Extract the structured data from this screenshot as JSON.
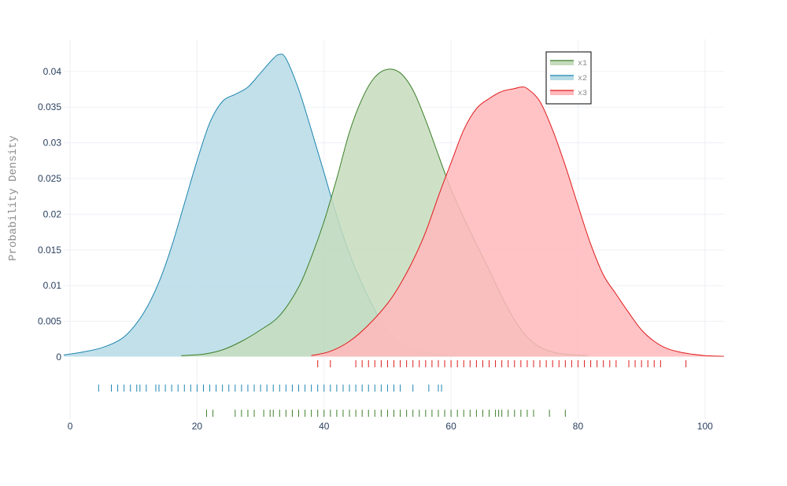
{
  "chart_data": {
    "type": "area",
    "title": "",
    "xlabel": "",
    "ylabel": "Probability Density",
    "xlim": [
      -1,
      103
    ],
    "ylim": [
      0,
      0.0445
    ],
    "x_ticks": [
      0,
      20,
      40,
      60,
      80,
      100
    ],
    "x_tick_labels": [
      "0",
      "20",
      "40",
      "60",
      "80",
      "100"
    ],
    "y_ticks": [
      0,
      0.005,
      0.01,
      0.015,
      0.02,
      0.025,
      0.03,
      0.035,
      0.04
    ],
    "y_tick_labels": [
      "0",
      "0.005",
      "0.01",
      "0.015",
      "0.02",
      "0.025",
      "0.03",
      "0.035",
      "0.04"
    ],
    "legend_position": "top-right",
    "series": [
      {
        "name": "x1",
        "line_color": "#3d7f2a",
        "fill_color": "#c5dcbd",
        "density": {
          "x": [
            17.5,
            21,
            24,
            27,
            30,
            33,
            36,
            38,
            40,
            42,
            44,
            46,
            48,
            50,
            52,
            54,
            56,
            58,
            60,
            62,
            64,
            66,
            68,
            70,
            72,
            74,
            76,
            78,
            81.5
          ],
          "y": [
            0.0002,
            0.0004,
            0.001,
            0.0022,
            0.0038,
            0.0058,
            0.0098,
            0.014,
            0.019,
            0.025,
            0.0315,
            0.0362,
            0.0392,
            0.0403,
            0.0398,
            0.0374,
            0.0332,
            0.0283,
            0.0235,
            0.0195,
            0.0158,
            0.0122,
            0.0085,
            0.0052,
            0.0028,
            0.0014,
            0.0007,
            0.0004,
            0.0002
          ]
        },
        "rug": [
          21.5,
          22.5,
          26,
          27,
          28,
          29,
          30.5,
          31.5,
          32,
          33,
          34,
          35,
          36,
          37,
          38,
          39,
          40,
          41,
          42,
          43,
          44,
          45,
          46,
          47,
          48,
          49,
          50,
          51,
          52,
          53,
          54,
          55,
          56,
          57,
          58,
          59,
          60,
          61,
          62,
          63,
          64,
          65,
          66,
          67,
          67.5,
          68,
          69,
          70,
          71,
          72,
          73,
          75.5,
          78
        ]
      },
      {
        "name": "x2",
        "line_color": "#1f86b0",
        "fill_color": "#b6dae6",
        "density": {
          "x": [
            -1,
            2,
            5,
            8,
            10,
            12,
            14,
            16,
            18,
            20,
            22,
            24,
            26,
            28,
            30,
            32,
            33,
            34,
            36,
            38,
            40,
            42,
            44,
            46,
            48,
            50,
            52,
            54,
            56,
            59.5
          ],
          "y": [
            0.0003,
            0.0007,
            0.0013,
            0.0025,
            0.0042,
            0.0068,
            0.0105,
            0.0155,
            0.0215,
            0.0275,
            0.0328,
            0.0358,
            0.0368,
            0.0378,
            0.0398,
            0.0418,
            0.0424,
            0.0418,
            0.0375,
            0.0318,
            0.0258,
            0.0198,
            0.0145,
            0.0102,
            0.0066,
            0.0036,
            0.0018,
            0.001,
            0.0006,
            0.0002
          ]
        },
        "rug": [
          4.5,
          6.5,
          7.5,
          8.5,
          9.5,
          10.5,
          11,
          12,
          13.5,
          14,
          15,
          16,
          17,
          18,
          19,
          20,
          21,
          22,
          23,
          24,
          25,
          26,
          27,
          28,
          29,
          30,
          31,
          32,
          33,
          34,
          35,
          36,
          37,
          38,
          39,
          40,
          41,
          42,
          43,
          44,
          45,
          46,
          47,
          48,
          49,
          50,
          51,
          52,
          54,
          56.5,
          58,
          58.5
        ]
      },
      {
        "name": "x3",
        "line_color": "#e01c1c",
        "fill_color": "#ffb8bc",
        "density": {
          "x": [
            38,
            41,
            44,
            47,
            50,
            52,
            54,
            56,
            58,
            60,
            62,
            64,
            66,
            68,
            70,
            71,
            72,
            74,
            76,
            78,
            80,
            82,
            84,
            86,
            88,
            90,
            92,
            94,
            96,
            98,
            100,
            103
          ],
          "y": [
            0.0002,
            0.0008,
            0.0022,
            0.0045,
            0.0075,
            0.0102,
            0.0135,
            0.0175,
            0.0225,
            0.0272,
            0.0318,
            0.0348,
            0.0362,
            0.0372,
            0.0376,
            0.0378,
            0.0376,
            0.0358,
            0.0318,
            0.0268,
            0.0212,
            0.0158,
            0.0115,
            0.0088,
            0.0062,
            0.0038,
            0.0022,
            0.0012,
            0.0007,
            0.0004,
            0.0002,
            0.0001
          ]
        },
        "rug": [
          39,
          41,
          45,
          46,
          47,
          48,
          49,
          50,
          51,
          52,
          53,
          54,
          55,
          56,
          57,
          58,
          59,
          60,
          61,
          62,
          63,
          64,
          65,
          66,
          67,
          68,
          69,
          70,
          71,
          72,
          73,
          74,
          75,
          76,
          77,
          78,
          79,
          80,
          81,
          82,
          83,
          84,
          85,
          86,
          88,
          89,
          90,
          91,
          92,
          93,
          97
        ]
      }
    ]
  }
}
